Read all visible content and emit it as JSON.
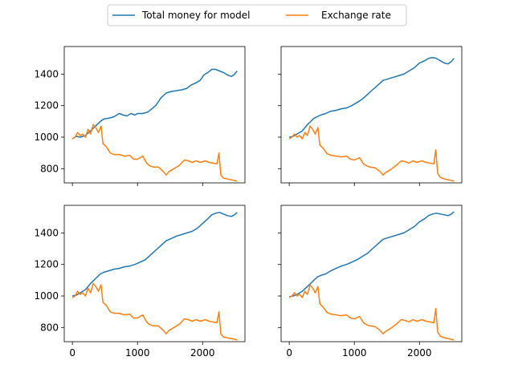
{
  "legend": {
    "items": [
      {
        "label": "Total money for model",
        "color": "#1f77b4"
      },
      {
        "label": "Exchange rate",
        "color": "#ff7f0e"
      }
    ],
    "placement": "top-center"
  },
  "chart_data": [
    {
      "type": "line",
      "panel": "top-left",
      "xlim": [
        -125,
        2650
      ],
      "ylim": [
        710,
        1575
      ],
      "xticks": [
        0,
        1000,
        2000
      ],
      "yticks": [
        800,
        1000,
        1200,
        1400
      ],
      "show_xtick_labels": false,
      "show_ytick_labels": true,
      "series": [
        {
          "name": "Total money for model",
          "color": "#1f77b4",
          "x": [
            0,
            60,
            120,
            200,
            280,
            330,
            380,
            430,
            480,
            560,
            640,
            720,
            780,
            840,
            900,
            960,
            1000,
            1080,
            1160,
            1220,
            1280,
            1360,
            1440,
            1520,
            1600,
            1680,
            1760,
            1820,
            1900,
            1960,
            2020,
            2080,
            2140,
            2200,
            2260,
            2320,
            2380,
            2440,
            2480,
            2530
          ],
          "y": [
            990,
            1005,
            1000,
            1010,
            1040,
            1060,
            1080,
            1100,
            1115,
            1120,
            1130,
            1150,
            1140,
            1135,
            1150,
            1140,
            1150,
            1150,
            1160,
            1180,
            1200,
            1250,
            1280,
            1290,
            1295,
            1300,
            1310,
            1330,
            1345,
            1360,
            1395,
            1410,
            1430,
            1430,
            1420,
            1410,
            1395,
            1385,
            1395,
            1420
          ]
        },
        {
          "name": "Exchange rate",
          "color": "#ff7f0e",
          "x": [
            0,
            40,
            80,
            120,
            160,
            200,
            240,
            280,
            320,
            360,
            400,
            440,
            470,
            520,
            580,
            640,
            720,
            800,
            880,
            940,
            1000,
            1080,
            1140,
            1180,
            1240,
            1320,
            1400,
            1440,
            1480,
            1560,
            1640,
            1720,
            1780,
            1840,
            1900,
            1960,
            2040,
            2100,
            2160,
            2220,
            2250,
            2280,
            2320,
            2380,
            2440,
            2500,
            2530
          ],
          "y": [
            990,
            1000,
            1030,
            1010,
            1020,
            1000,
            1050,
            1020,
            1080,
            1060,
            1030,
            1070,
            960,
            940,
            900,
            890,
            890,
            880,
            885,
            860,
            860,
            880,
            835,
            820,
            810,
            810,
            780,
            760,
            780,
            800,
            820,
            855,
            850,
            840,
            850,
            840,
            850,
            840,
            835,
            830,
            900,
            760,
            740,
            735,
            730,
            725,
            720
          ]
        }
      ]
    },
    {
      "type": "line",
      "panel": "top-right",
      "xlim": [
        -125,
        2650
      ],
      "ylim": [
        710,
        1575
      ],
      "xticks": [
        0,
        1000,
        2000
      ],
      "yticks": [
        800,
        1000,
        1200,
        1400
      ],
      "show_xtick_labels": false,
      "show_ytick_labels": false,
      "series": [
        {
          "name": "Total money for model",
          "color": "#1f77b4",
          "x": [
            0,
            60,
            120,
            200,
            280,
            330,
            380,
            430,
            480,
            560,
            640,
            720,
            800,
            880,
            960,
            1040,
            1120,
            1200,
            1280,
            1360,
            1440,
            1520,
            1600,
            1680,
            1760,
            1840,
            1920,
            2000,
            2080,
            2140,
            2200,
            2260,
            2320,
            2380,
            2440,
            2490,
            2530
          ],
          "y": [
            1000,
            1005,
            1020,
            1040,
            1080,
            1100,
            1120,
            1130,
            1140,
            1150,
            1165,
            1170,
            1180,
            1185,
            1200,
            1220,
            1240,
            1270,
            1300,
            1330,
            1360,
            1370,
            1380,
            1390,
            1400,
            1420,
            1440,
            1470,
            1485,
            1500,
            1505,
            1500,
            1485,
            1470,
            1465,
            1480,
            1500
          ]
        },
        {
          "name": "Exchange rate",
          "color": "#ff7f0e",
          "x": [
            0,
            40,
            80,
            120,
            160,
            200,
            240,
            280,
            320,
            360,
            400,
            440,
            470,
            520,
            580,
            640,
            720,
            800,
            880,
            940,
            1000,
            1080,
            1140,
            1180,
            1240,
            1320,
            1400,
            1440,
            1480,
            1560,
            1640,
            1720,
            1780,
            1840,
            1900,
            1960,
            2040,
            2100,
            2160,
            2220,
            2250,
            2280,
            2320,
            2380,
            2440,
            2500,
            2530
          ],
          "y": [
            990,
            1000,
            1020,
            1000,
            1010,
            990,
            1030,
            1010,
            1070,
            1050,
            1020,
            1060,
            950,
            930,
            895,
            885,
            880,
            875,
            880,
            860,
            855,
            870,
            830,
            820,
            810,
            805,
            780,
            760,
            775,
            795,
            820,
            850,
            845,
            835,
            850,
            840,
            850,
            840,
            835,
            830,
            920,
            770,
            745,
            735,
            730,
            725,
            720
          ]
        }
      ]
    },
    {
      "type": "line",
      "panel": "bottom-left",
      "xlim": [
        -125,
        2650
      ],
      "ylim": [
        710,
        1575
      ],
      "xticks": [
        0,
        1000,
        2000
      ],
      "yticks": [
        800,
        1000,
        1200,
        1400
      ],
      "show_xtick_labels": true,
      "show_ytick_labels": true,
      "series": [
        {
          "name": "Total money for model",
          "color": "#1f77b4",
          "x": [
            0,
            60,
            120,
            200,
            280,
            330,
            380,
            430,
            480,
            560,
            640,
            720,
            800,
            880,
            960,
            1040,
            1120,
            1200,
            1280,
            1360,
            1440,
            1520,
            1600,
            1680,
            1760,
            1840,
            1920,
            2000,
            2080,
            2140,
            2200,
            2260,
            2320,
            2380,
            2440,
            2490,
            2530
          ],
          "y": [
            1000,
            1005,
            1020,
            1040,
            1080,
            1100,
            1120,
            1140,
            1150,
            1160,
            1170,
            1175,
            1185,
            1190,
            1200,
            1215,
            1230,
            1260,
            1290,
            1320,
            1350,
            1365,
            1380,
            1390,
            1400,
            1410,
            1430,
            1460,
            1490,
            1515,
            1525,
            1530,
            1520,
            1510,
            1505,
            1515,
            1530
          ]
        },
        {
          "name": "Exchange rate",
          "color": "#ff7f0e",
          "x": [
            0,
            40,
            80,
            120,
            160,
            200,
            240,
            280,
            320,
            360,
            400,
            440,
            470,
            520,
            580,
            640,
            720,
            800,
            880,
            940,
            1000,
            1080,
            1140,
            1180,
            1240,
            1320,
            1400,
            1440,
            1480,
            1560,
            1640,
            1720,
            1780,
            1840,
            1900,
            1960,
            2040,
            2100,
            2160,
            2220,
            2250,
            2280,
            2320,
            2380,
            2440,
            2500,
            2530
          ],
          "y": [
            990,
            1000,
            1030,
            1010,
            1020,
            1000,
            1050,
            1020,
            1080,
            1060,
            1030,
            1070,
            960,
            940,
            900,
            890,
            890,
            880,
            885,
            860,
            860,
            880,
            835,
            820,
            810,
            810,
            780,
            760,
            780,
            800,
            820,
            855,
            850,
            840,
            850,
            840,
            850,
            840,
            835,
            830,
            900,
            760,
            740,
            735,
            730,
            725,
            720
          ]
        }
      ]
    },
    {
      "type": "line",
      "panel": "bottom-right",
      "xlim": [
        -125,
        2650
      ],
      "ylim": [
        710,
        1575
      ],
      "xticks": [
        0,
        1000,
        2000
      ],
      "yticks": [
        800,
        1000,
        1200,
        1400
      ],
      "show_xtick_labels": true,
      "show_ytick_labels": false,
      "series": [
        {
          "name": "Total money for model",
          "color": "#1f77b4",
          "x": [
            0,
            60,
            120,
            200,
            280,
            330,
            380,
            430,
            480,
            560,
            640,
            720,
            800,
            880,
            960,
            1040,
            1120,
            1200,
            1280,
            1360,
            1440,
            1520,
            1600,
            1680,
            1760,
            1840,
            1920,
            2000,
            2080,
            2140,
            2200,
            2260,
            2320,
            2380,
            2440,
            2490,
            2530
          ],
          "y": [
            995,
            1000,
            1010,
            1030,
            1060,
            1080,
            1100,
            1120,
            1130,
            1140,
            1160,
            1175,
            1190,
            1200,
            1215,
            1230,
            1250,
            1270,
            1300,
            1330,
            1360,
            1370,
            1380,
            1390,
            1400,
            1420,
            1440,
            1470,
            1490,
            1510,
            1520,
            1525,
            1520,
            1515,
            1510,
            1520,
            1535
          ]
        },
        {
          "name": "Exchange rate",
          "color": "#ff7f0e",
          "x": [
            0,
            40,
            80,
            120,
            160,
            200,
            240,
            280,
            320,
            360,
            400,
            440,
            470,
            520,
            580,
            640,
            720,
            800,
            880,
            940,
            1000,
            1080,
            1140,
            1180,
            1240,
            1320,
            1400,
            1440,
            1480,
            1560,
            1640,
            1720,
            1780,
            1840,
            1900,
            1960,
            2040,
            2100,
            2160,
            2220,
            2250,
            2280,
            2320,
            2380,
            2440,
            2500,
            2530
          ],
          "y": [
            990,
            1000,
            1020,
            1000,
            1010,
            990,
            1030,
            1010,
            1070,
            1050,
            1020,
            1060,
            950,
            930,
            895,
            885,
            880,
            875,
            880,
            860,
            855,
            870,
            830,
            820,
            810,
            805,
            780,
            760,
            775,
            795,
            820,
            850,
            845,
            835,
            850,
            840,
            850,
            840,
            835,
            830,
            920,
            770,
            745,
            735,
            730,
            725,
            720
          ]
        }
      ]
    }
  ]
}
